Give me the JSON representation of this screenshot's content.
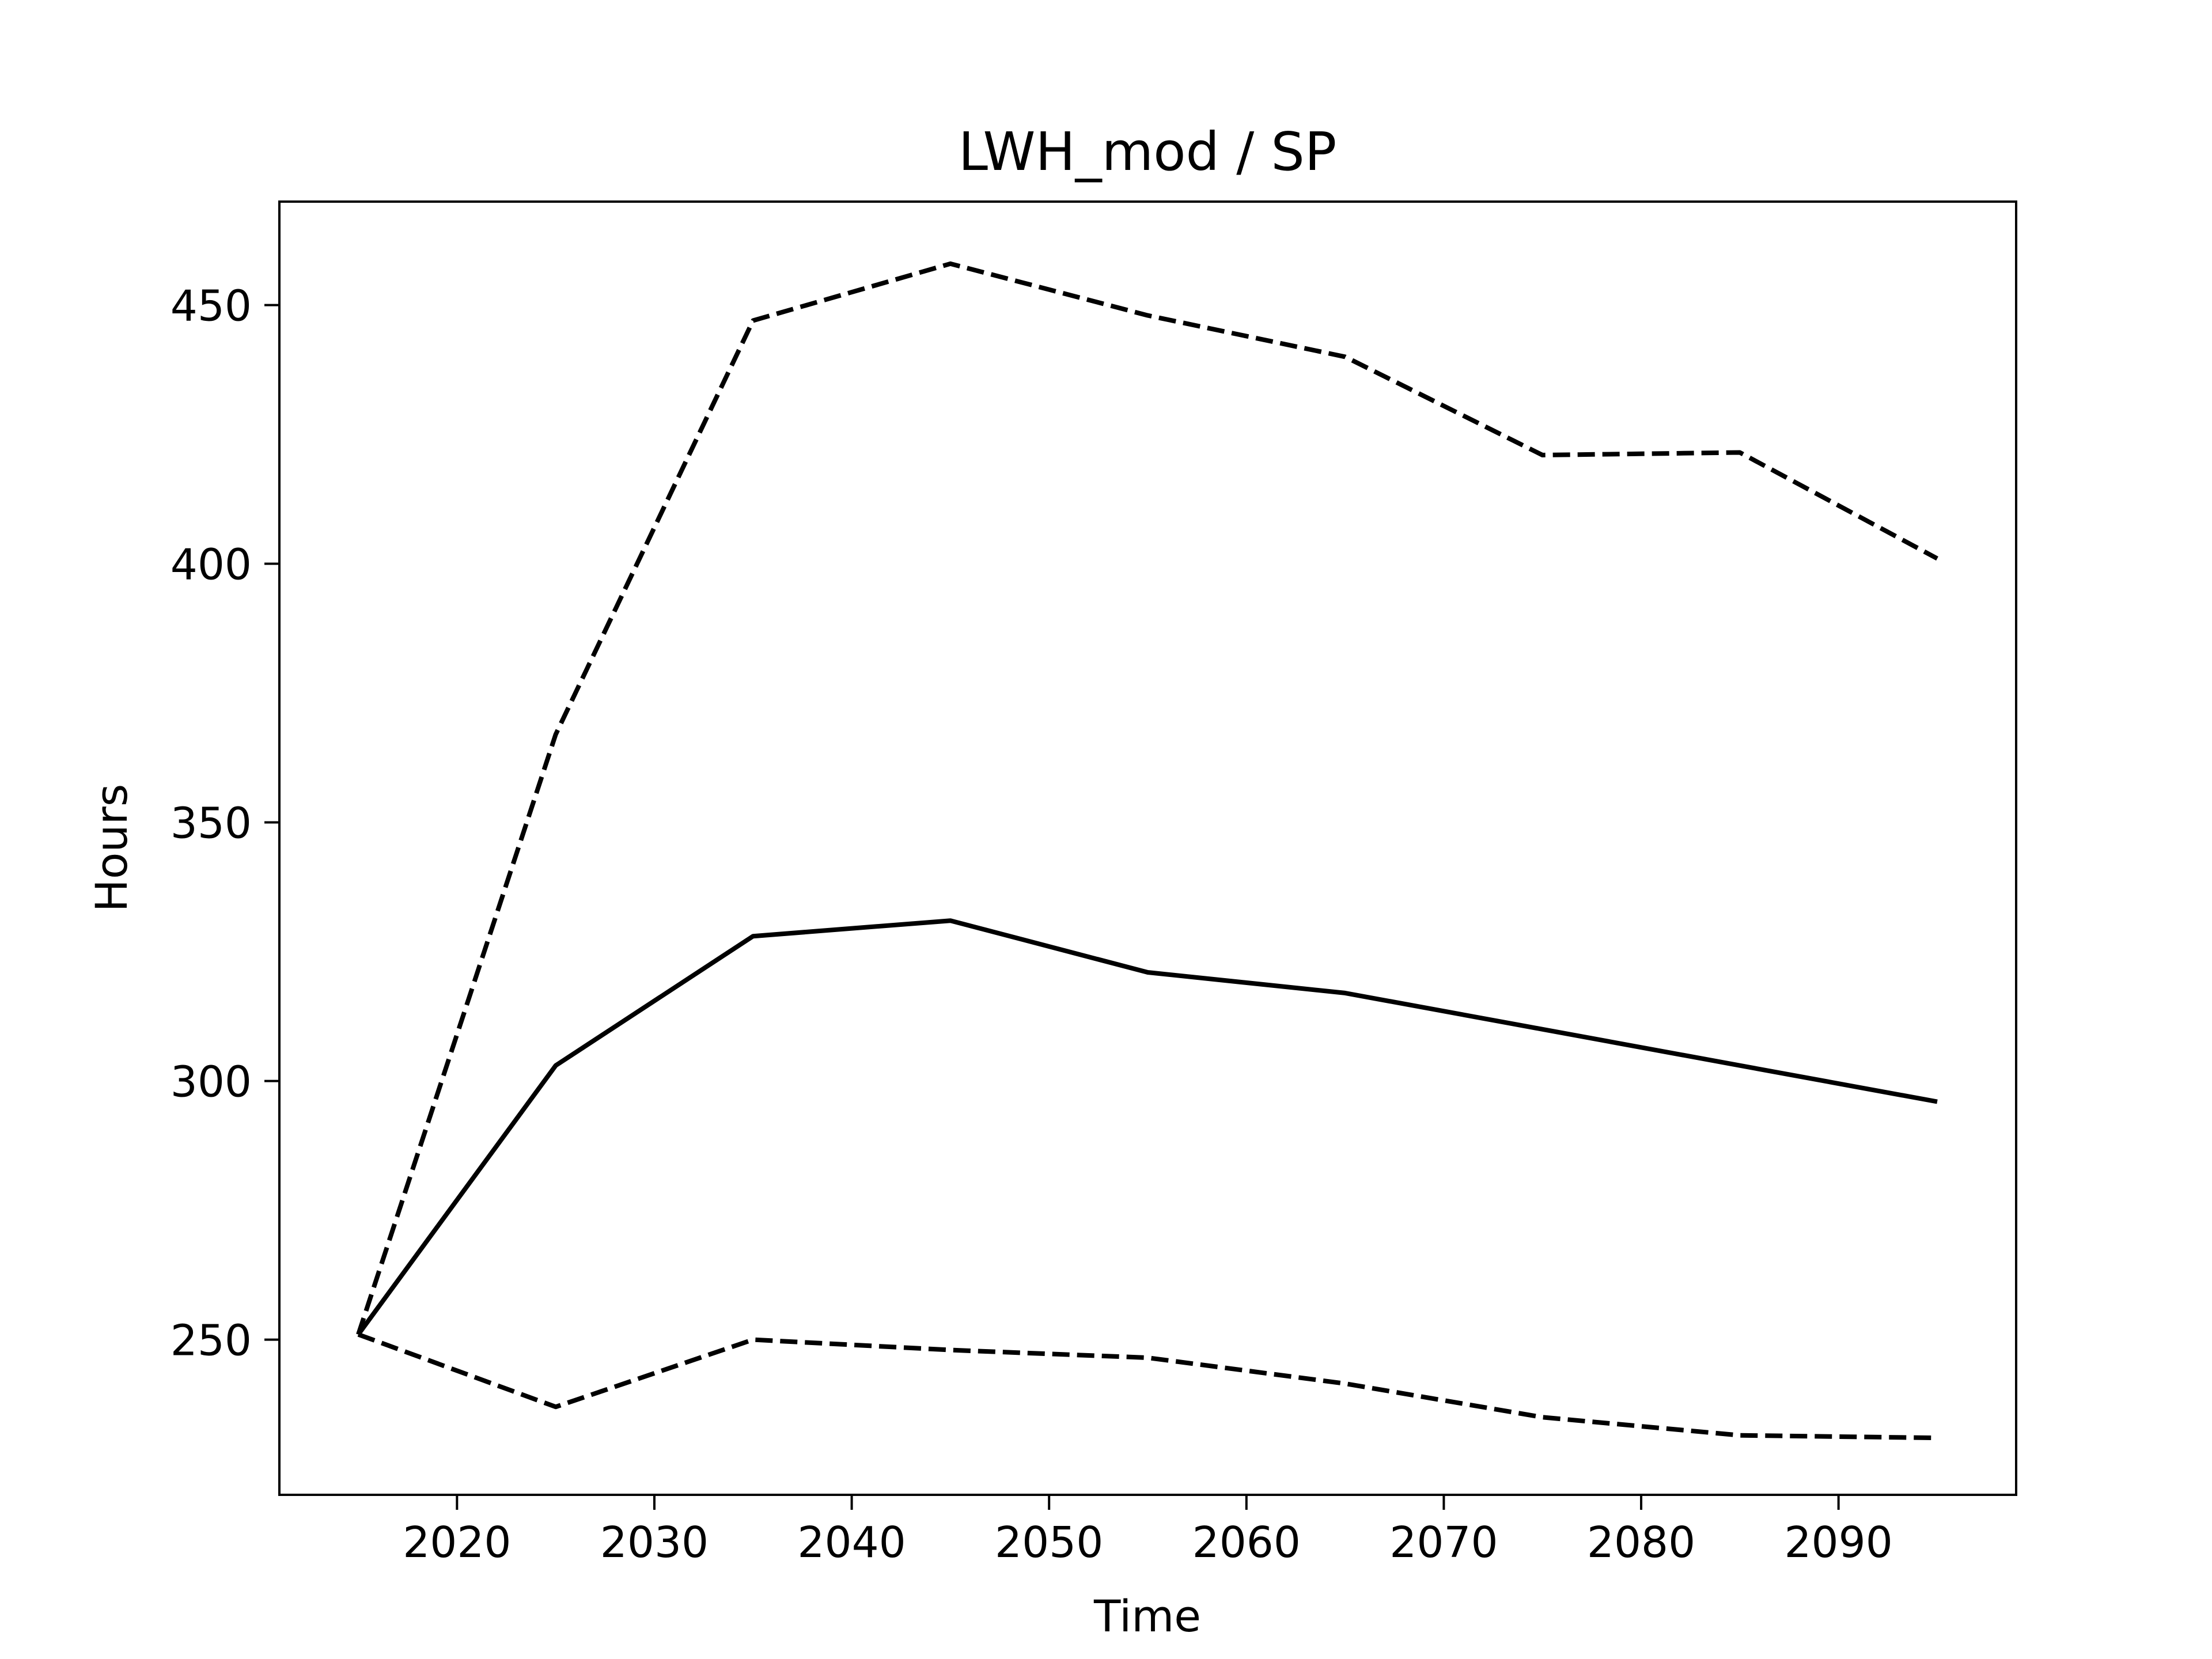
{
  "chart_data": {
    "type": "line",
    "title": "LWH_mod / SP",
    "xlabel": "Time",
    "ylabel": "Hours",
    "xlim": [
      2011,
      2099
    ],
    "ylim": [
      220,
      470
    ],
    "xticks": [
      2020,
      2030,
      2040,
      2050,
      2060,
      2070,
      2080,
      2090
    ],
    "yticks": [
      250,
      300,
      350,
      400,
      450
    ],
    "grid": false,
    "legend": "none",
    "x": [
      2015,
      2025,
      2035,
      2045,
      2055,
      2065,
      2075,
      2085,
      2095
    ],
    "series": [
      {
        "style": "dashed",
        "color": "#000000",
        "values": [
          251,
          367,
          447,
          458,
          448,
          440,
          421,
          421.5,
          401
        ]
      },
      {
        "style": "solid",
        "color": "#000000",
        "values": [
          251,
          303,
          328,
          331,
          321,
          317,
          310,
          303,
          296
        ]
      },
      {
        "style": "dashed",
        "color": "#000000",
        "values": [
          251,
          237,
          250,
          248,
          246.5,
          241.5,
          235,
          231.5,
          231
        ]
      }
    ]
  }
}
